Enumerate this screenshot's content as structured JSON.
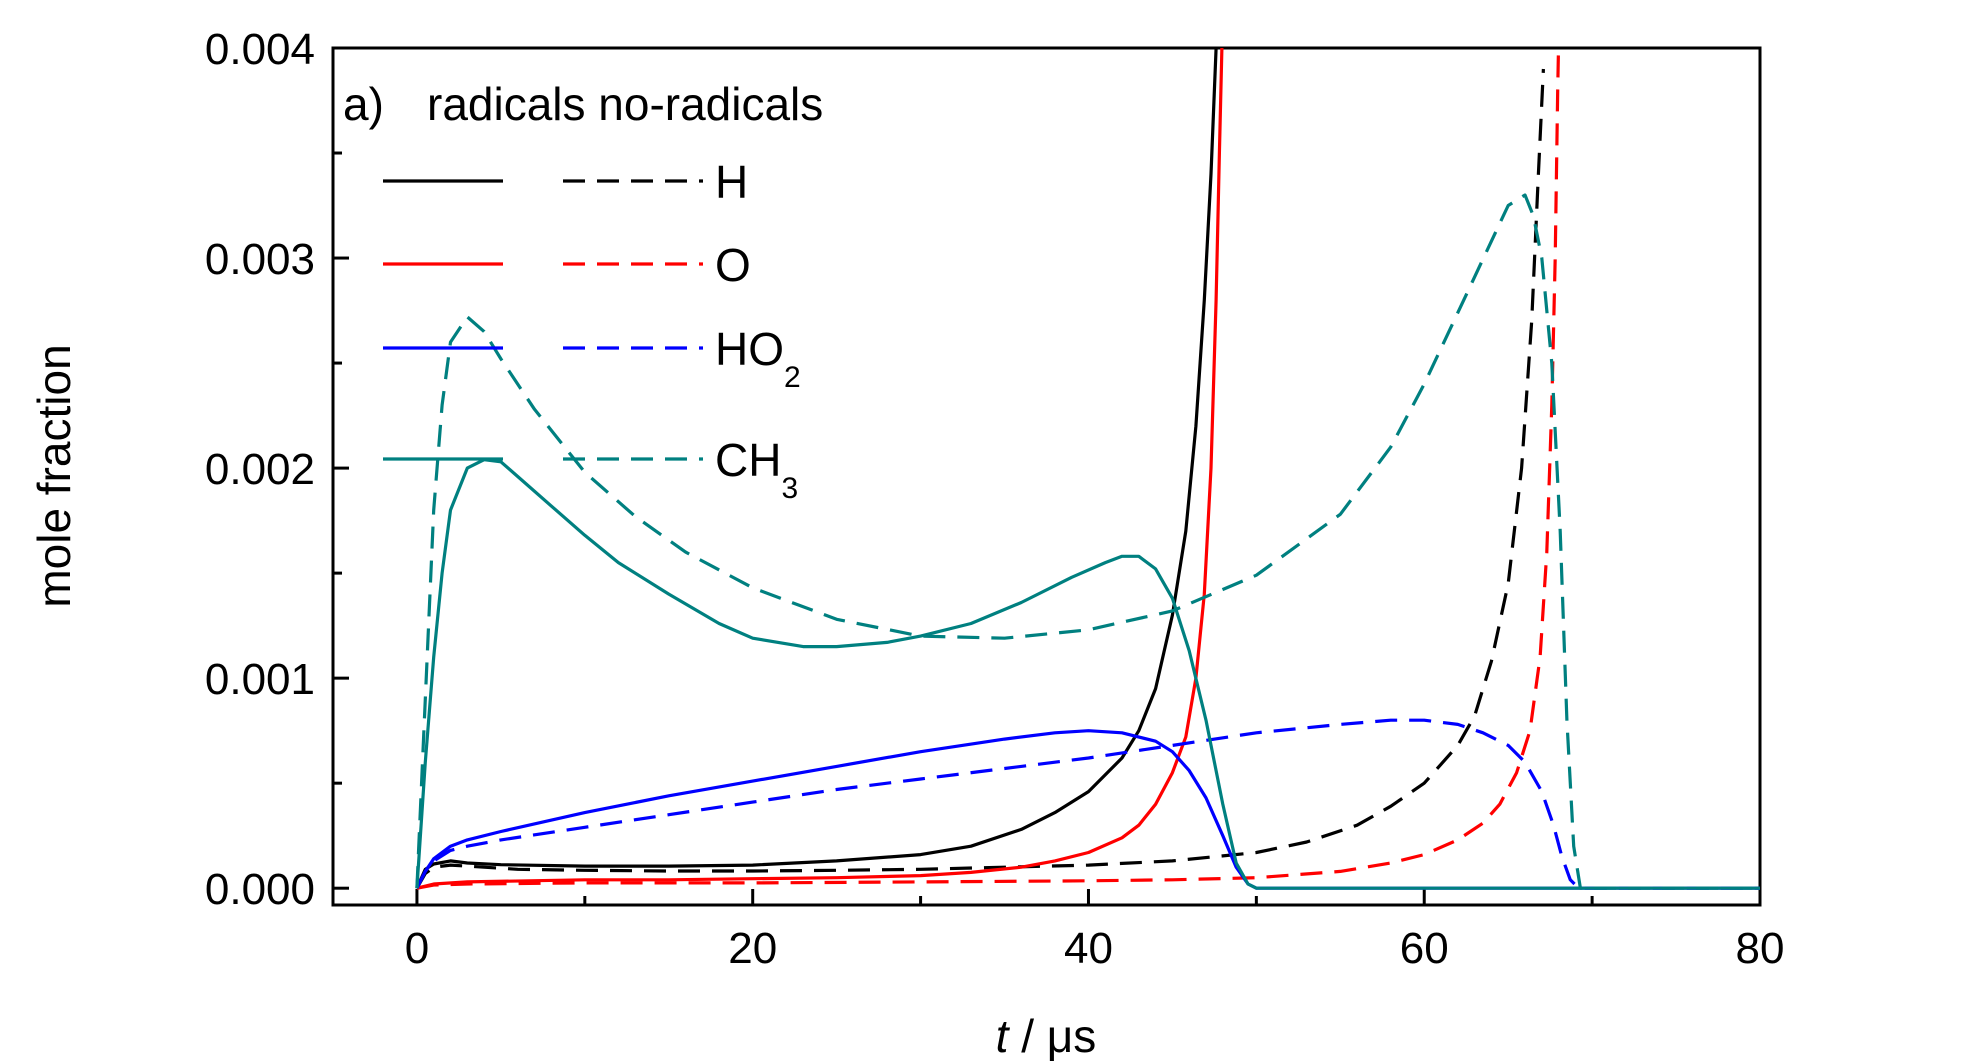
{
  "chart_data": {
    "type": "line",
    "panel_label": "a)",
    "legend_header": {
      "radicals": "radicals",
      "no_radicals": "no-radicals"
    },
    "xlabel": {
      "italic": "t",
      "rest": " / μs"
    },
    "ylabel": "mole fraction",
    "xlim": [
      -5,
      80
    ],
    "ylim": [
      -8e-05,
      0.004
    ],
    "x_ticks": [
      0,
      20,
      40,
      60,
      80
    ],
    "x_tick_labels": [
      "0",
      "20",
      "40",
      "60",
      "80"
    ],
    "y_ticks": [
      0.0,
      0.001,
      0.002,
      0.003,
      0.004
    ],
    "y_tick_labels": [
      "0.000",
      "0.001",
      "0.002",
      "0.003",
      "0.004"
    ],
    "grid": false,
    "legend_position": "top-left",
    "series": [
      {
        "name": "H",
        "sub": "",
        "color": "#000000",
        "dash": false,
        "points": [
          [
            0,
            0
          ],
          [
            0.5,
            9e-05
          ],
          [
            1,
            0.000115
          ],
          [
            2,
            0.00013
          ],
          [
            3,
            0.00012
          ],
          [
            5,
            0.000112
          ],
          [
            10,
            0.000105
          ],
          [
            15,
            0.000105
          ],
          [
            20,
            0.00011
          ],
          [
            25,
            0.00013
          ],
          [
            30,
            0.00016
          ],
          [
            33,
            0.0002
          ],
          [
            36,
            0.00028
          ],
          [
            38,
            0.00036
          ],
          [
            40,
            0.00046
          ],
          [
            42,
            0.00062
          ],
          [
            43,
            0.00075
          ],
          [
            44,
            0.00095
          ],
          [
            45,
            0.0013
          ],
          [
            45.8,
            0.0017
          ],
          [
            46.4,
            0.0022
          ],
          [
            46.9,
            0.0028
          ],
          [
            47.3,
            0.0034
          ],
          [
            47.6,
            0.004
          ]
        ]
      },
      {
        "name": "H",
        "sub": "",
        "color": "#000000",
        "dash": true,
        "points": [
          [
            0,
            0
          ],
          [
            0.5,
            7e-05
          ],
          [
            1,
            0.0001
          ],
          [
            2,
            0.00011
          ],
          [
            4,
            0.0001
          ],
          [
            6,
            9e-05
          ],
          [
            10,
            8.5e-05
          ],
          [
            15,
            8.2e-05
          ],
          [
            20,
            8.2e-05
          ],
          [
            25,
            8.5e-05
          ],
          [
            30,
            9e-05
          ],
          [
            35,
            0.0001
          ],
          [
            40,
            0.00011
          ],
          [
            45,
            0.00013
          ],
          [
            50,
            0.00017
          ],
          [
            53,
            0.00022
          ],
          [
            56,
            0.0003
          ],
          [
            58,
            0.00039
          ],
          [
            60,
            0.0005
          ],
          [
            62,
            0.00068
          ],
          [
            63,
            0.00082
          ],
          [
            64,
            0.00108
          ],
          [
            65,
            0.00145
          ],
          [
            65.8,
            0.002
          ],
          [
            66.4,
            0.0027
          ],
          [
            66.8,
            0.0034
          ],
          [
            67.1,
            0.0039
          ]
        ]
      },
      {
        "name": "O",
        "sub": "",
        "color": "#ff0000",
        "dash": false,
        "points": [
          [
            0,
            0
          ],
          [
            1,
            2e-05
          ],
          [
            3,
            3e-05
          ],
          [
            10,
            4e-05
          ],
          [
            15,
            4e-05
          ],
          [
            20,
            4.5e-05
          ],
          [
            25,
            5e-05
          ],
          [
            30,
            6e-05
          ],
          [
            33,
            7.5e-05
          ],
          [
            36,
            0.0001
          ],
          [
            38,
            0.00013
          ],
          [
            40,
            0.00017
          ],
          [
            42,
            0.00024
          ],
          [
            43,
            0.0003
          ],
          [
            44,
            0.0004
          ],
          [
            45,
            0.00055
          ],
          [
            45.8,
            0.00072
          ],
          [
            46.4,
            0.001
          ],
          [
            46.9,
            0.0014
          ],
          [
            47.3,
            0.002
          ],
          [
            47.6,
            0.0028
          ],
          [
            47.8,
            0.0035
          ],
          [
            47.95,
            0.004
          ]
        ]
      },
      {
        "name": "O",
        "sub": "",
        "color": "#ff0000",
        "dash": true,
        "points": [
          [
            0,
            0
          ],
          [
            1,
            1.5e-05
          ],
          [
            3,
            2e-05
          ],
          [
            10,
            2.5e-05
          ],
          [
            20,
            2.5e-05
          ],
          [
            30,
            3e-05
          ],
          [
            40,
            3.5e-05
          ],
          [
            45,
            4e-05
          ],
          [
            50,
            5e-05
          ],
          [
            55,
            8e-05
          ],
          [
            58,
            0.00012
          ],
          [
            60,
            0.00016
          ],
          [
            62,
            0.00023
          ],
          [
            63.5,
            0.00031
          ],
          [
            64.5,
            0.0004
          ],
          [
            65.5,
            0.00055
          ],
          [
            66.3,
            0.00075
          ],
          [
            66.9,
            0.0011
          ],
          [
            67.3,
            0.0016
          ],
          [
            67.6,
            0.0023
          ],
          [
            67.8,
            0.003
          ],
          [
            67.95,
            0.0038
          ],
          [
            68,
            0.004
          ]
        ]
      },
      {
        "name": "HO",
        "sub": "2",
        "color": "#0000ff",
        "dash": false,
        "points": [
          [
            0,
            0
          ],
          [
            0.5,
            8e-05
          ],
          [
            1,
            0.00014
          ],
          [
            2,
            0.0002
          ],
          [
            3,
            0.00023
          ],
          [
            5,
            0.00027
          ],
          [
            10,
            0.00036
          ],
          [
            15,
            0.00044
          ],
          [
            20,
            0.00051
          ],
          [
            25,
            0.00058
          ],
          [
            30,
            0.00065
          ],
          [
            35,
            0.00071
          ],
          [
            38,
            0.00074
          ],
          [
            40,
            0.00075
          ],
          [
            42,
            0.00074
          ],
          [
            44,
            0.0007
          ],
          [
            45,
            0.00065
          ],
          [
            46,
            0.00056
          ],
          [
            47,
            0.00043
          ],
          [
            48,
            0.00025
          ],
          [
            48.8,
            0.0001
          ],
          [
            49.5,
            2e-05
          ],
          [
            50,
            0
          ],
          [
            80,
            0
          ]
        ]
      },
      {
        "name": "HO",
        "sub": "2",
        "color": "#0000ff",
        "dash": true,
        "points": [
          [
            0,
            0
          ],
          [
            0.5,
            8e-05
          ],
          [
            1,
            0.00013
          ],
          [
            2,
            0.00018
          ],
          [
            3,
            0.0002
          ],
          [
            5,
            0.00023
          ],
          [
            10,
            0.00029
          ],
          [
            15,
            0.00035
          ],
          [
            20,
            0.00041
          ],
          [
            25,
            0.00047
          ],
          [
            30,
            0.00052
          ],
          [
            35,
            0.00057
          ],
          [
            40,
            0.00062
          ],
          [
            45,
            0.00068
          ],
          [
            50,
            0.00074
          ],
          [
            55,
            0.00078
          ],
          [
            58,
            0.0008
          ],
          [
            60,
            0.0008
          ],
          [
            62,
            0.00078
          ],
          [
            63.5,
            0.00074
          ],
          [
            65,
            0.00068
          ],
          [
            66,
            0.0006
          ],
          [
            67,
            0.00046
          ],
          [
            67.7,
            0.0003
          ],
          [
            68.2,
            0.00015
          ],
          [
            68.7,
            4e-05
          ],
          [
            69.2,
            0
          ],
          [
            80,
            0
          ]
        ]
      },
      {
        "name": "CH",
        "sub": "3",
        "color": "#008080",
        "dash": false,
        "points": [
          [
            0,
            0
          ],
          [
            0.5,
            0.0006
          ],
          [
            1,
            0.0011
          ],
          [
            1.5,
            0.0015
          ],
          [
            2,
            0.0018
          ],
          [
            3,
            0.002
          ],
          [
            4,
            0.00204
          ],
          [
            5,
            0.00203
          ],
          [
            6,
            0.00196
          ],
          [
            8,
            0.00182
          ],
          [
            10,
            0.00168
          ],
          [
            12,
            0.00155
          ],
          [
            15,
            0.0014
          ],
          [
            18,
            0.00126
          ],
          [
            20,
            0.00119
          ],
          [
            23,
            0.00115
          ],
          [
            25,
            0.00115
          ],
          [
            28,
            0.00117
          ],
          [
            30,
            0.0012
          ],
          [
            33,
            0.00126
          ],
          [
            36,
            0.00136
          ],
          [
            39,
            0.00148
          ],
          [
            41,
            0.00155
          ],
          [
            42,
            0.00158
          ],
          [
            43,
            0.00158
          ],
          [
            44,
            0.00152
          ],
          [
            45,
            0.00138
          ],
          [
            46,
            0.00113
          ],
          [
            47,
            0.0008
          ],
          [
            48,
            0.0004
          ],
          [
            48.8,
            0.00012
          ],
          [
            49.5,
            2e-05
          ],
          [
            50,
            0
          ],
          [
            80,
            0
          ]
        ]
      },
      {
        "name": "CH",
        "sub": "3",
        "color": "#008080",
        "dash": true,
        "points": [
          [
            0,
            0
          ],
          [
            0.5,
            0.0009
          ],
          [
            1,
            0.0018
          ],
          [
            1.5,
            0.0023
          ],
          [
            2,
            0.0026
          ],
          [
            3,
            0.00272
          ],
          [
            4,
            0.00265
          ],
          [
            5,
            0.00252
          ],
          [
            7,
            0.00228
          ],
          [
            10,
            0.00198
          ],
          [
            13,
            0.00177
          ],
          [
            16,
            0.0016
          ],
          [
            20,
            0.00143
          ],
          [
            25,
            0.00128
          ],
          [
            30,
            0.0012
          ],
          [
            35,
            0.00119
          ],
          [
            40,
            0.00123
          ],
          [
            45,
            0.00132
          ],
          [
            50,
            0.00149
          ],
          [
            55,
            0.00178
          ],
          [
            58,
            0.0021
          ],
          [
            60,
            0.0024
          ],
          [
            62,
            0.00274
          ],
          [
            64,
            0.00308
          ],
          [
            65,
            0.00325
          ],
          [
            66,
            0.0033
          ],
          [
            66.5,
            0.0032
          ],
          [
            67,
            0.003
          ],
          [
            67.6,
            0.0025
          ],
          [
            68.1,
            0.0017
          ],
          [
            68.5,
            0.0008
          ],
          [
            68.9,
            0.0002
          ],
          [
            69.3,
            0
          ],
          [
            80,
            0
          ]
        ]
      }
    ]
  }
}
